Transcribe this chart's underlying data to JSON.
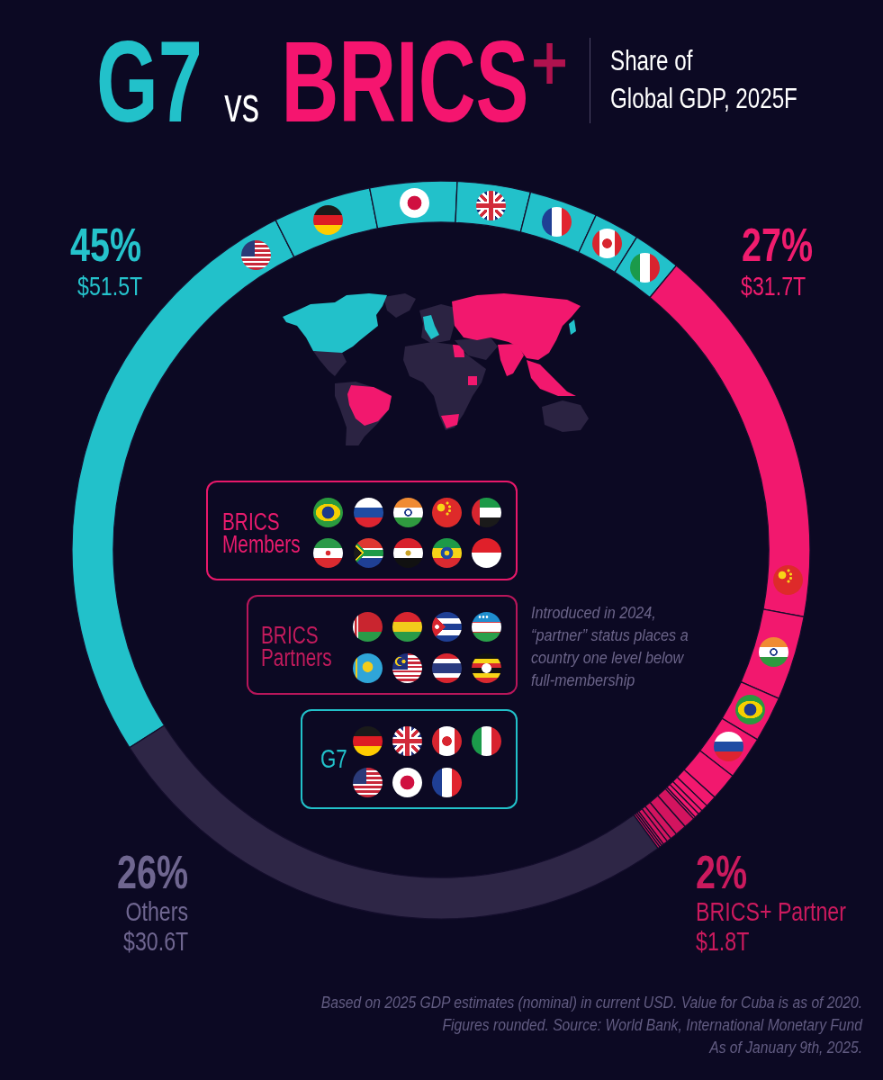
{
  "chart_data": {
    "type": "donut",
    "title": "G7 vs BRICS⁺",
    "subtitle": "Share of\nGlobal GDP, 2025F",
    "categories": [
      null,
      null,
      null,
      null,
      null,
      null,
      null,
      null,
      null,
      null,
      null,
      null,
      null,
      null,
      null,
      null,
      null,
      null,
      null,
      null,
      null,
      null,
      null,
      null,
      null,
      "Others"
    ],
    "values": [
      26.6,
      4.3,
      3.8,
      3.2,
      3.0,
      2.0,
      2.1,
      16.9,
      3.7,
      2.0,
      1.9,
      1.2,
      0.5,
      0.3,
      0.2,
      0.2,
      0.1,
      0.5,
      0.5,
      0.3,
      0.2,
      0.2,
      0.1,
      0.1,
      0.1,
      26.0
    ],
    "colors": [
      "#22c1ca",
      "#22c1ca",
      "#22c1ca",
      "#22c1ca",
      "#22c1ca",
      "#22c1ca",
      "#22c1ca",
      "#f2186e",
      "#f2186e",
      "#f2186e",
      "#f2186e",
      "#f2186e",
      "#f2186e",
      "#f2186e",
      "#f2186e",
      "#f2186e",
      "#f2186e",
      "#d3145f",
      "#d3145f",
      "#d3145f",
      "#d3145f",
      "#d3145f",
      "#d3145f",
      "#d3145f",
      "#d3145f",
      "#2e2646"
    ],
    "annotations": [
      "45%",
      "$51.5T",
      "27%",
      "$31.7T",
      "26%",
      "$30.6T",
      "2%",
      "BRICS+ Partner",
      "$1.8T",
      "BRICS Members",
      "BRICS Partners",
      "G7",
      "Introduced in 2024,\n“partner” status places a\ncountry one level below\nfull-membership",
      "Based on 2025 GDP estimates (nominal) in current USD. Value for Cuba is as of 2020.\nFigures rounded. Source: World Bank, International Monetary Fund\nAs of January 9th, 2025."
    ]
  }
}
